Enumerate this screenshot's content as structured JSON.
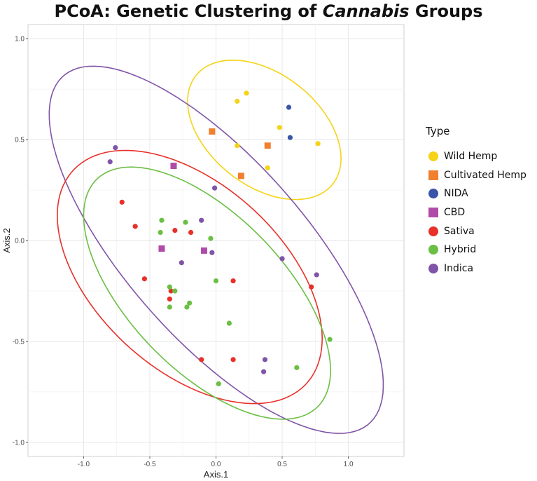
{
  "title_pre": "PCoA: Genetic Clustering of ",
  "title_italic": "Cannabis",
  "title_post": " Groups",
  "chart_data": {
    "type": "scatter",
    "xlabel": "Axis.1",
    "ylabel": "Axis.2",
    "xlim": [
      -1.42,
      1.42
    ],
    "ylim": [
      -1.07,
      1.07
    ],
    "x_ticks": [
      -1.0,
      -0.5,
      0.0,
      0.5,
      1.0
    ],
    "x_tick_labels": [
      "-1.0",
      "-0.5",
      "0.0",
      "0.5",
      "1.0"
    ],
    "y_ticks": [
      1.0,
      0.5,
      0.0,
      -0.5,
      -1.0
    ],
    "y_tick_labels": [
      "1.0",
      "0.5",
      "0.0",
      "-0.5",
      "-1.0"
    ],
    "grid": true,
    "legend_title": "Type",
    "legend_position": "right",
    "series": [
      {
        "name": "Wild Hemp",
        "color": "#F5D316",
        "shape": "circle",
        "points": [
          [
            0.16,
            0.69
          ],
          [
            0.23,
            0.73
          ],
          [
            0.16,
            0.47
          ],
          [
            0.48,
            0.56
          ],
          [
            0.77,
            0.48
          ],
          [
            0.39,
            0.36
          ]
        ]
      },
      {
        "name": "Cultivated Hemp",
        "color": "#F08030",
        "shape": "square",
        "points": [
          [
            -0.03,
            0.54
          ],
          [
            0.39,
            0.47
          ],
          [
            0.19,
            0.32
          ]
        ]
      },
      {
        "name": "NIDA",
        "color": "#3A55A8",
        "shape": "circle",
        "points": [
          [
            0.55,
            0.66
          ],
          [
            0.56,
            0.51
          ]
        ]
      },
      {
        "name": "CBD",
        "color": "#B04CA8",
        "shape": "square",
        "points": [
          [
            -0.32,
            0.37
          ],
          [
            -0.41,
            -0.04
          ],
          [
            -0.09,
            -0.05
          ]
        ]
      },
      {
        "name": "Sativa",
        "color": "#E8302A",
        "shape": "circle",
        "points": [
          [
            -0.71,
            0.19
          ],
          [
            -0.61,
            0.07
          ],
          [
            -0.31,
            0.05
          ],
          [
            -0.19,
            0.04
          ],
          [
            -0.54,
            -0.19
          ],
          [
            -0.34,
            -0.25
          ],
          [
            -0.35,
            -0.29
          ],
          [
            0.13,
            -0.2
          ],
          [
            0.72,
            -0.23
          ],
          [
            -0.11,
            -0.59
          ],
          [
            0.13,
            -0.59
          ]
        ]
      },
      {
        "name": "Hybrid",
        "color": "#6BBF44",
        "shape": "circle",
        "points": [
          [
            -0.41,
            0.1
          ],
          [
            -0.42,
            0.04
          ],
          [
            -0.23,
            0.09
          ],
          [
            -0.04,
            0.01
          ],
          [
            -0.35,
            -0.23
          ],
          [
            -0.31,
            -0.25
          ],
          [
            0.0,
            -0.2
          ],
          [
            -0.2,
            -0.31
          ],
          [
            -0.35,
            -0.33
          ],
          [
            -0.22,
            -0.33
          ],
          [
            0.1,
            -0.41
          ],
          [
            0.86,
            -0.49
          ],
          [
            0.61,
            -0.63
          ],
          [
            0.02,
            -0.71
          ]
        ]
      },
      {
        "name": "Indica",
        "color": "#8054A8",
        "shape": "circle",
        "points": [
          [
            -0.76,
            0.46
          ],
          [
            -0.8,
            0.39
          ],
          [
            -0.01,
            0.26
          ],
          [
            -0.11,
            0.1
          ],
          [
            -0.03,
            -0.06
          ],
          [
            -0.26,
            -0.11
          ],
          [
            0.5,
            -0.09
          ],
          [
            0.76,
            -0.17
          ],
          [
            0.37,
            -0.59
          ],
          [
            0.36,
            -0.65
          ]
        ]
      }
    ],
    "ellipses": [
      {
        "group": "Wild Hemp",
        "color": "#F5D316"
      },
      {
        "group": "Indica",
        "color": "#8054A8"
      },
      {
        "group": "Sativa",
        "color": "#E8302A"
      },
      {
        "group": "Hybrid",
        "color": "#6BBF44"
      }
    ]
  }
}
